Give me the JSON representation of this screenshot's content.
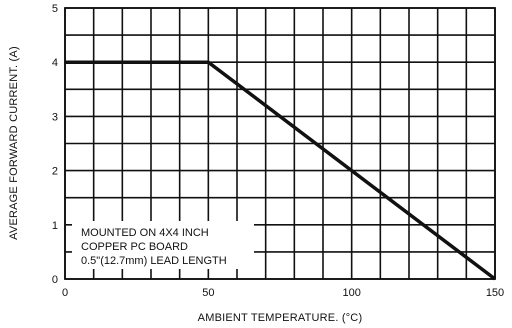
{
  "chart_data": {
    "type": "line",
    "xlabel": "AMBIENT TEMPERATURE. (°C)",
    "ylabel": "AVERAGE FORWARD CURRENT. (A)",
    "xlim": [
      0,
      150
    ],
    "ylim": [
      0,
      5
    ],
    "x_ticks": [
      "0",
      "50",
      "100",
      "150"
    ],
    "y_ticks": [
      "0",
      "1",
      "2",
      "3",
      "4",
      "5"
    ],
    "x_gridlines": [
      0,
      10,
      20,
      30,
      40,
      50,
      60,
      70,
      80,
      90,
      100,
      110,
      120,
      130,
      140,
      150
    ],
    "y_gridlines": [
      0,
      0.5,
      1,
      1.5,
      2,
      2.5,
      3,
      3.5,
      4,
      4.5,
      5
    ],
    "grid": true,
    "series": [
      {
        "x": [
          0,
          50,
          150
        ],
        "y": [
          4,
          4,
          0
        ]
      }
    ],
    "annotation": [
      "MOUNTED ON 4X4 INCH",
      "COPPER PC BOARD",
      "0.5\"(12.7mm) LEAD LENGTH"
    ]
  }
}
